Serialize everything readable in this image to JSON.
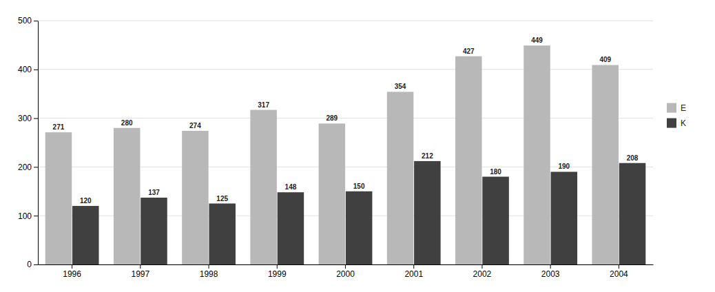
{
  "chart_data": {
    "type": "bar",
    "categories": [
      "1996",
      "1997",
      "1998",
      "1999",
      "2000",
      "2001",
      "2002",
      "2003",
      "2004"
    ],
    "series": [
      {
        "name": "E",
        "color": "#b8b8b8",
        "values": [
          271,
          280,
          274,
          317,
          289,
          354,
          427,
          449,
          409
        ]
      },
      {
        "name": "K",
        "color": "#404040",
        "values": [
          120,
          137,
          125,
          148,
          150,
          212,
          180,
          190,
          208
        ]
      }
    ],
    "ylim": [
      0,
      500
    ],
    "yticks": [
      0,
      100,
      200,
      300,
      400,
      500
    ],
    "grid": true,
    "legend": "right",
    "data_labels": true
  }
}
